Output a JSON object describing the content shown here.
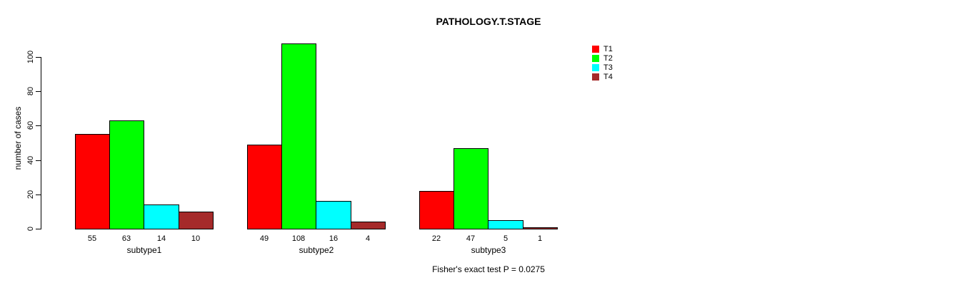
{
  "title": "PATHOLOGY.T.STAGE",
  "chart_data": {
    "type": "bar",
    "layout": "grouped-beside",
    "title": "PATHOLOGY.T.STAGE",
    "categories": [
      "subtype1",
      "subtype2",
      "subtype3"
    ],
    "series": [
      {
        "name": "T1",
        "color": "#ff0000",
        "values": [
          55,
          49,
          22
        ]
      },
      {
        "name": "T2",
        "color": "#00ff00",
        "values": [
          63,
          108,
          47
        ]
      },
      {
        "name": "T3",
        "color": "#00ffff",
        "values": [
          14,
          16,
          5
        ]
      },
      {
        "name": "T4",
        "color": "#a52a2a",
        "values": [
          10,
          4,
          1
        ]
      }
    ],
    "xlabel": "",
    "ylabel": "number of cases",
    "yticks": [
      0,
      20,
      40,
      60,
      80,
      100
    ],
    "ylim": [
      0,
      110
    ],
    "grid": false,
    "bar_value_labels_shown": true,
    "legend_position": "right",
    "annotation": "Fisher's exact test P = 0.0275"
  },
  "colors": {
    "background": "#ffffff",
    "text": "#000000",
    "bar_border": "#000000",
    "axis": "#000000"
  }
}
